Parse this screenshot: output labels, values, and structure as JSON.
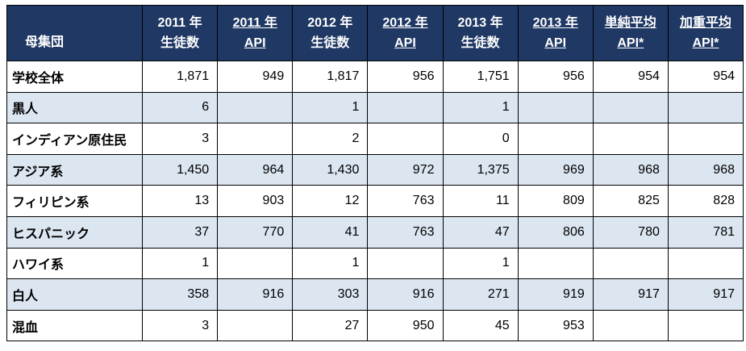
{
  "chart_data": {
    "type": "table",
    "columns": [
      "母集団",
      "2011 年 生徒数",
      "2011 年 API",
      "2012 年 生徒数",
      "2012 年 API",
      "2013 年 生徒数",
      "2013 年 API",
      "単純平均 API*",
      "加重平均 API*"
    ],
    "rows": [
      [
        "学校全体",
        "1,871",
        "949",
        "1,817",
        "956",
        "1,751",
        "956",
        "954",
        "954"
      ],
      [
        "黒人",
        "6",
        "",
        "1",
        "",
        "1",
        "",
        "",
        ""
      ],
      [
        "インディアン原住民",
        "3",
        "",
        "2",
        "",
        "0",
        "",
        "",
        ""
      ],
      [
        "アジア系",
        "1,450",
        "964",
        "1,430",
        "972",
        "1,375",
        "969",
        "968",
        "968"
      ],
      [
        "フィリピン系",
        "13",
        "903",
        "12",
        "763",
        "11",
        "809",
        "825",
        "828"
      ],
      [
        "ヒスパニック",
        "37",
        "770",
        "41",
        "763",
        "47",
        "806",
        "780",
        "781"
      ],
      [
        "ハワイ系",
        "1",
        "",
        "1",
        "",
        "1",
        "",
        "",
        ""
      ],
      [
        "白人",
        "358",
        "916",
        "303",
        "916",
        "271",
        "919",
        "917",
        "917"
      ],
      [
        "混血",
        "3",
        "",
        "27",
        "950",
        "45",
        "953",
        "",
        ""
      ]
    ]
  },
  "header": {
    "population_label": "母集団",
    "columns": [
      {
        "line1": "2011 年",
        "line2": "生徒数",
        "underline": false
      },
      {
        "line1": "2011 年",
        "line2": "API",
        "underline": true
      },
      {
        "line1": "2012 年",
        "line2": "生徒数",
        "underline": false
      },
      {
        "line1": "2012 年",
        "line2": "API",
        "underline": true
      },
      {
        "line1": "2013 年",
        "line2": "生徒数",
        "underline": false
      },
      {
        "line1": "2013 年",
        "line2": "API",
        "underline": true
      },
      {
        "line1": "単純平均",
        "line2": "API*",
        "underline": true
      },
      {
        "line1": "加重平均",
        "line2": "API*",
        "underline": true
      }
    ]
  },
  "colors": {
    "header_bg": "#1F3864",
    "header_text": "#FFFFFF",
    "alt_row_bg": "#DCE6F1",
    "border": "#000000"
  }
}
